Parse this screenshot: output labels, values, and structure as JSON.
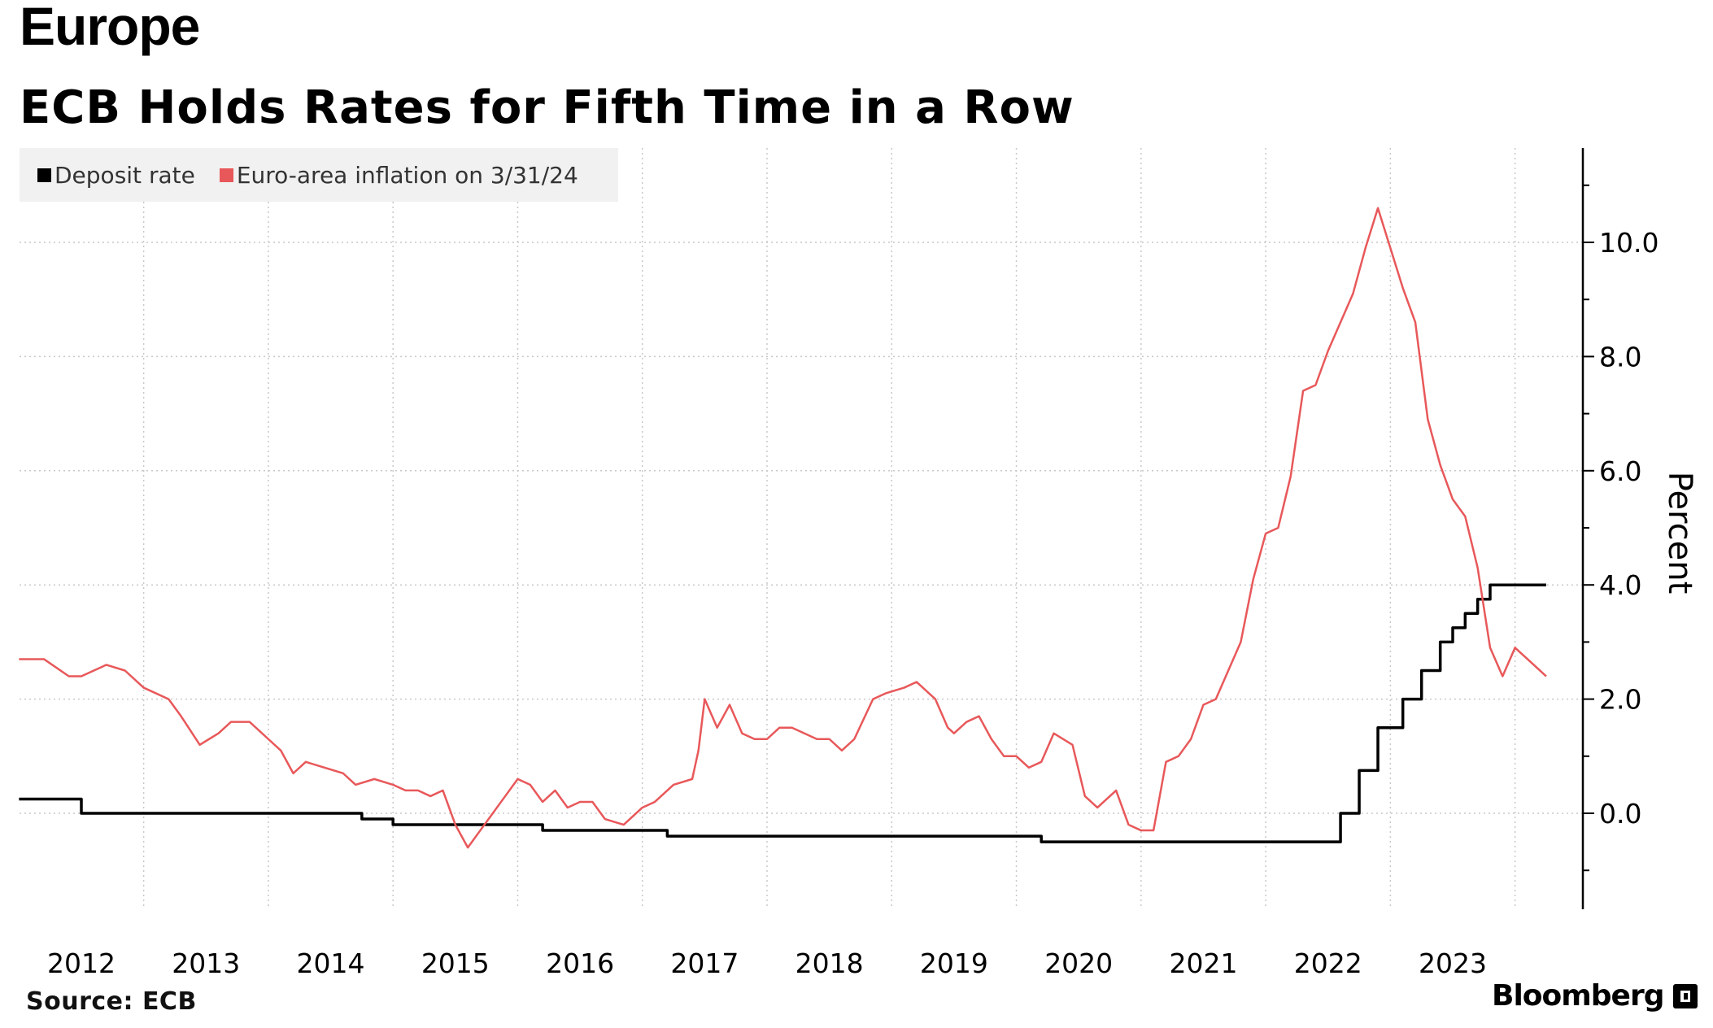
{
  "header": {
    "section": "Europe",
    "title": "ECB Holds Rates for Fifth Time in a Row"
  },
  "legend": {
    "items": [
      {
        "label": "Deposit rate",
        "color": "#000000"
      },
      {
        "label": "Euro-area inflation on 3/31/24",
        "color": "#e8585a"
      }
    ]
  },
  "footer": {
    "source": "Source:  ECB",
    "brand": "Bloomberg"
  },
  "chart_data": {
    "type": "line",
    "title": "ECB Holds Rates for Fifth Time in a Row",
    "xlabel": "",
    "ylabel": "Percent",
    "xlim": [
      2011.5,
      2024.0
    ],
    "ylim": [
      -1.7,
      11.5
    ],
    "x_ticks": [
      2012,
      2013,
      2014,
      2015,
      2016,
      2017,
      2018,
      2019,
      2020,
      2021,
      2022,
      2023
    ],
    "x_tick_labels": [
      "2012",
      "2013",
      "2014",
      "2015",
      "2016",
      "2017",
      "2018",
      "2019",
      "2020",
      "2021",
      "2022",
      "2023"
    ],
    "y_ticks": [
      0,
      2,
      4,
      6,
      8,
      10
    ],
    "y_tick_labels": [
      "0.0",
      "2.0",
      "4.0",
      "6.0",
      "8.0",
      "10.0"
    ],
    "grid": true,
    "legend_position": "top-left",
    "series": [
      {
        "name": "Deposit rate",
        "color": "#000000",
        "step": true,
        "x": [
          2011.5,
          2012.0,
          2014.0,
          2014.25,
          2014.5,
          2015.5,
          2015.7,
          2016.0,
          2016.7,
          2019.0,
          2019.7,
          2022.0,
          2022.1,
          2022.25,
          2022.4,
          2022.6,
          2022.75,
          2022.9,
          2023.0,
          2023.1,
          2023.2,
          2023.3,
          2023.45,
          2023.6,
          2023.7,
          2023.75
        ],
        "values": [
          0.25,
          0.0,
          0.0,
          -0.1,
          -0.2,
          -0.2,
          -0.3,
          -0.3,
          -0.4,
          -0.4,
          -0.5,
          -0.5,
          0.0,
          0.75,
          1.5,
          2.0,
          2.5,
          3.0,
          3.25,
          3.5,
          3.75,
          4.0,
          4.0,
          4.0,
          4.0,
          4.0
        ]
      },
      {
        "name": "Euro-area inflation on 3/31/24",
        "color": "#e8585a",
        "step": false,
        "x": [
          2011.5,
          2011.7,
          2011.9,
          2012.0,
          2012.2,
          2012.35,
          2012.5,
          2012.7,
          2012.8,
          2012.95,
          2013.1,
          2013.2,
          2013.35,
          2013.5,
          2013.6,
          2013.7,
          2013.8,
          2013.95,
          2014.1,
          2014.2,
          2014.35,
          2014.5,
          2014.6,
          2014.7,
          2014.8,
          2014.9,
          2015.0,
          2015.1,
          2015.2,
          2015.4,
          2015.5,
          2015.6,
          2015.7,
          2015.8,
          2015.9,
          2016.0,
          2016.1,
          2016.2,
          2016.35,
          2016.5,
          2016.6,
          2016.75,
          2016.9,
          2016.95,
          2017.0,
          2017.1,
          2017.2,
          2017.3,
          2017.4,
          2017.5,
          2017.6,
          2017.7,
          2017.8,
          2017.9,
          2018.0,
          2018.1,
          2018.2,
          2018.35,
          2018.45,
          2018.6,
          2018.7,
          2018.85,
          2018.95,
          2019.0,
          2019.1,
          2019.2,
          2019.3,
          2019.4,
          2019.5,
          2019.6,
          2019.7,
          2019.8,
          2019.95,
          2020.05,
          2020.15,
          2020.3,
          2020.4,
          2020.5,
          2020.6,
          2020.7,
          2020.8,
          2020.9,
          2021.0,
          2021.1,
          2021.2,
          2021.3,
          2021.4,
          2021.5,
          2021.6,
          2021.7,
          2021.8,
          2021.9,
          2022.0,
          2022.1,
          2022.2,
          2022.3,
          2022.4,
          2022.5,
          2022.6,
          2022.7,
          2022.8,
          2022.9,
          2023.0,
          2023.1,
          2023.2,
          2023.3,
          2023.4,
          2023.5,
          2023.55,
          2023.65,
          2023.75
        ],
        "values": [
          2.7,
          2.7,
          2.4,
          2.4,
          2.6,
          2.5,
          2.2,
          2.0,
          1.7,
          1.2,
          1.4,
          1.6,
          1.6,
          1.3,
          1.1,
          0.7,
          0.9,
          0.8,
          0.7,
          0.5,
          0.6,
          0.5,
          0.4,
          0.4,
          0.3,
          0.4,
          -0.2,
          -0.6,
          -0.3,
          0.3,
          0.6,
          0.5,
          0.2,
          0.4,
          0.1,
          0.2,
          0.2,
          -0.1,
          -0.2,
          0.1,
          0.2,
          0.5,
          0.6,
          1.1,
          2.0,
          1.5,
          1.9,
          1.4,
          1.3,
          1.3,
          1.5,
          1.5,
          1.4,
          1.3,
          1.3,
          1.1,
          1.3,
          2.0,
          2.1,
          2.2,
          2.3,
          2.0,
          1.5,
          1.4,
          1.6,
          1.7,
          1.3,
          1.0,
          1.0,
          0.8,
          0.9,
          1.4,
          1.2,
          0.3,
          0.1,
          0.4,
          -0.2,
          -0.3,
          -0.3,
          0.9,
          1.0,
          1.3,
          1.9,
          2.0,
          2.5,
          3.0,
          4.1,
          4.9,
          5.0,
          5.9,
          7.4,
          7.5,
          8.1,
          8.6,
          9.1,
          9.9,
          10.6,
          9.9,
          9.2,
          8.6,
          6.9,
          6.1,
          5.5,
          5.2,
          4.3,
          2.9,
          2.4,
          2.9,
          2.8,
          2.6,
          2.4
        ]
      }
    ]
  }
}
